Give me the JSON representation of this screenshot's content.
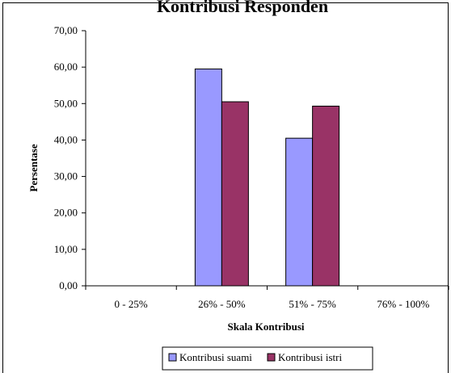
{
  "chart_data": {
    "type": "bar",
    "title": "Kontribusi Responden",
    "xlabel": "Skala Kontribusi",
    "ylabel": "Persentase",
    "categories": [
      "0 - 25%",
      "26% - 50%",
      "51% - 75%",
      "76% - 100%"
    ],
    "series": [
      {
        "name": "Kontribusi suami",
        "values": [
          0,
          59.5,
          40.5,
          0
        ],
        "color": "#9999ff"
      },
      {
        "name": "Kontribusi istri",
        "values": [
          0,
          50.5,
          49.3,
          0
        ],
        "color": "#993366"
      }
    ],
    "ylim": [
      0,
      70
    ],
    "ytick_step": 10,
    "ytick_labels": [
      "0,00",
      "10,00",
      "20,00",
      "30,00",
      "40,00",
      "50,00",
      "60,00",
      "70,00"
    ],
    "grid": false,
    "legend_position": "bottom"
  }
}
